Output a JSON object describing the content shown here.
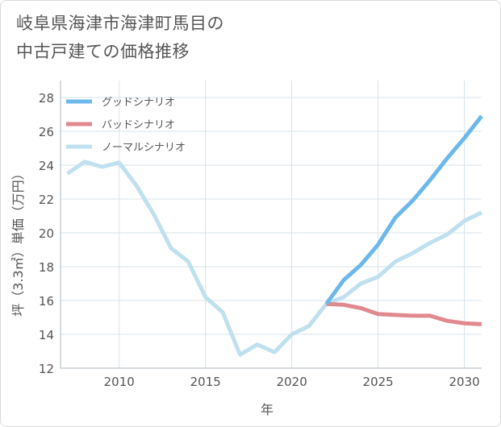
{
  "title_lines": [
    "岐阜県海津市海津町馬目の",
    "中古戸建ての価格推移"
  ],
  "chart_data": {
    "type": "line",
    "xlabel": "年",
    "ylabel": "坪（3.3㎡）単価（万円）",
    "xlim": [
      2006.6,
      2031
    ],
    "ylim": [
      12,
      29
    ],
    "x_ticks": [
      2010,
      2015,
      2020,
      2025,
      2030
    ],
    "y_ticks": [
      12,
      14,
      16,
      18,
      20,
      22,
      24,
      26,
      28
    ],
    "grid": true,
    "legend_position": "top-left",
    "series": [
      {
        "name": "グッドシナリオ",
        "color": "#6cb8ea",
        "x": [
          2022,
          2023,
          2024,
          2025,
          2026,
          2027,
          2028,
          2029,
          2030,
          2031
        ],
        "y": [
          15.8,
          17.2,
          18.1,
          19.3,
          20.9,
          21.9,
          23.1,
          24.4,
          25.6,
          26.9
        ]
      },
      {
        "name": "バッドシナリオ",
        "color": "#e0898f",
        "x": [
          2022,
          2023,
          2024,
          2025,
          2026,
          2027,
          2028,
          2029,
          2030,
          2031
        ],
        "y": [
          15.8,
          15.75,
          15.55,
          15.2,
          15.15,
          15.1,
          15.1,
          14.8,
          14.65,
          14.6
        ]
      },
      {
        "name": "ノーマルシナリオ",
        "color": "#bfe0ee",
        "x": [
          2007,
          2008,
          2009,
          2010,
          2011,
          2012,
          2013,
          2014,
          2015,
          2016,
          2017,
          2018,
          2019,
          2020,
          2021,
          2022,
          2023,
          2024,
          2025,
          2026,
          2027,
          2028,
          2029,
          2030,
          2031
        ],
        "y": [
          23.5,
          24.2,
          23.9,
          24.15,
          22.8,
          21.1,
          19.1,
          18.3,
          16.2,
          15.3,
          12.8,
          13.4,
          12.95,
          14.0,
          14.5,
          15.8,
          16.2,
          17.0,
          17.4,
          18.3,
          18.8,
          19.4,
          19.9,
          20.7,
          21.2
        ]
      }
    ]
  }
}
